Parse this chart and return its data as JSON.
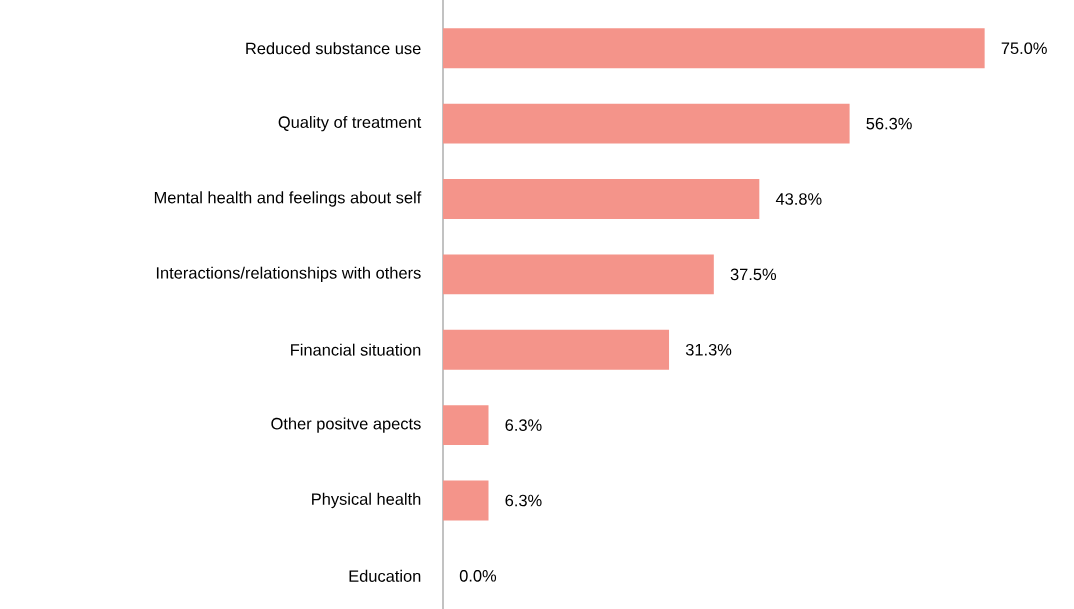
{
  "chart_data": {
    "type": "bar",
    "orientation": "horizontal",
    "categories": [
      "Reduced substance use",
      "Quality of treatment",
      "Mental health and feelings about self",
      "Interactions/relationships with others",
      "Financial situation",
      "Other positve apects",
      "Physical health",
      "Education"
    ],
    "values": [
      75.0,
      56.3,
      43.8,
      37.5,
      31.3,
      6.3,
      6.3,
      0.0
    ],
    "value_labels": [
      "75.0%",
      "56.3%",
      "43.8%",
      "37.5%",
      "31.3%",
      "6.3%",
      "6.3%",
      "0.0%"
    ],
    "color": "#f4948a"
  }
}
